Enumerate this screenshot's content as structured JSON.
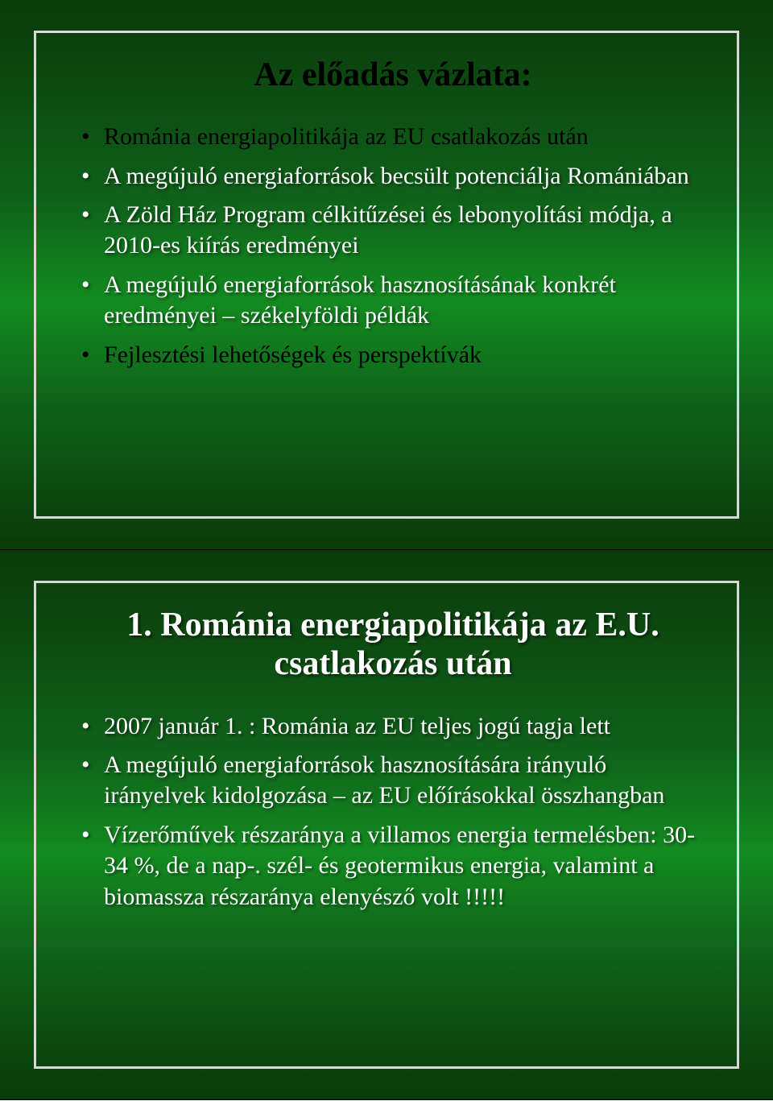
{
  "slides": [
    {
      "title": "Az előadás vázlata:",
      "title_color": "black",
      "bullets": [
        {
          "text": "Románia energiapolitikája az EU csatlakozás után",
          "color": "black"
        },
        {
          "text": "A megújuló energiaforrások becsült potenciálja Romániában",
          "color": "white"
        },
        {
          "text": "A Zöld Ház Program célkitűzései és lebonyolítási módja, a 2010-es kiírás eredményei",
          "color": "white"
        },
        {
          "text": "A megújuló energiaforrások  hasznosításának konkrét eredményei – székelyföldi példák",
          "color": "white"
        },
        {
          "text": "Fejlesztési lehetőségek és perspektívák",
          "color": "black"
        }
      ]
    },
    {
      "title": "1. Románia energiapolitikája az E.U. csatlakozás után",
      "title_color": "white",
      "bullets": [
        {
          "text": "2007 január 1. : Románia az EU teljes jogú tagja lett",
          "color": "white"
        },
        {
          "text": "A megújuló energiaforrások hasznosítására irányuló irányelvek kidolgozása – az EU előírásokkal összhangban",
          "color": "white"
        },
        {
          "text": "Vízerőművek részaránya a villamos energia termelésben: 30-34 %, de a nap-. szél- és geotermikus energia, valamint a biomassza részaránya elenyésző volt !!!!!",
          "color": "white"
        }
      ]
    }
  ],
  "style": {
    "slide_width": 960,
    "slide_height": 683,
    "bg_gradient": [
      "#0a3a0a",
      "#0f5f1a",
      "#138a20",
      "#0f5f1a",
      "#0a3a0a"
    ],
    "border_color": "#d8d8d8",
    "border_width": 3,
    "title_fontsize": 42,
    "bullet_fontsize": 30,
    "font_family": "Georgia",
    "text_shadow": "2px 2px 3px rgba(0,0,0,0.5)"
  }
}
